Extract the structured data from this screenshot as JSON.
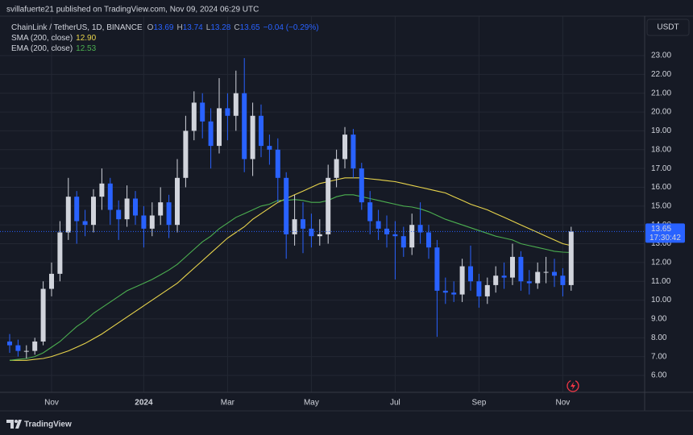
{
  "chart_data": {
    "type": "candlestick",
    "header": "svillafuerte21 published on TradingView.com, Nov 09, 2024 06:29 UTC",
    "symbol": "ChainLink / TetherUS, 1D, BINANCE",
    "ohlc": [
      {
        "label": "O",
        "value": "13.69"
      },
      {
        "label": "H",
        "value": "13.74"
      },
      {
        "label": "L",
        "value": "13.28"
      },
      {
        "label": "C",
        "value": "13.65"
      }
    ],
    "change": "−0.04 (−0.29%)",
    "currency": "USDT",
    "last_price": {
      "label": "13.65",
      "countdown": "17:30:42"
    },
    "footer": "TradingView",
    "up_color": "#d1d4dc",
    "down_color": "#2962ff",
    "grid": true,
    "categories": [
      null,
      null,
      null,
      null,
      null,
      "Nov",
      null,
      null,
      null,
      null,
      null,
      null,
      null,
      null,
      null,
      null,
      "2024",
      null,
      null,
      null,
      null,
      null,
      null,
      null,
      null,
      null,
      "Mar",
      null,
      null,
      null,
      null,
      null,
      null,
      null,
      null,
      null,
      "May",
      null,
      null,
      null,
      null,
      null,
      null,
      null,
      null,
      null,
      "Jul",
      null,
      null,
      null,
      null,
      null,
      null,
      null,
      null,
      null,
      "Sep",
      null,
      null,
      null,
      null,
      null,
      null,
      null,
      null,
      null,
      "Nov",
      null
    ],
    "open": [
      7.8,
      7.6,
      7.3,
      7.3,
      7.8,
      10.6,
      11.4,
      13.6,
      15.5,
      14.2,
      14.0,
      15.5,
      16.2,
      14.8,
      14.3,
      15.4,
      14.5,
      13.8,
      14.5,
      15.2,
      14.0,
      16.5,
      19.0,
      20.5,
      19.5,
      18.2,
      20.2,
      19.8,
      21.0,
      17.5,
      19.8,
      18.2,
      18.0,
      16.5,
      13.5,
      14.3,
      13.8,
      13.4,
      13.5,
      16.5,
      17.5,
      18.8,
      17.0,
      15.2,
      14.2,
      13.8,
      13.5,
      13.4,
      12.8,
      14.0,
      13.6,
      12.8,
      10.5,
      10.4,
      10.3,
      11.8,
      11.0,
      10.2,
      10.8,
      11.3,
      11.2,
      12.3,
      11.0,
      10.9,
      11.5,
      11.5,
      11.3,
      10.8
    ],
    "high": [
      8.2,
      7.9,
      7.6,
      8.0,
      11.0,
      12.0,
      14.2,
      16.5,
      15.8,
      14.8,
      15.9,
      17.0,
      16.5,
      15.3,
      16.1,
      15.8,
      15.0,
      15.2,
      16.0,
      15.6,
      17.5,
      19.8,
      21.1,
      21.0,
      20.2,
      21.8,
      21.0,
      22.2,
      22.87,
      20.5,
      20.4,
      18.8,
      18.6,
      16.8,
      15.6,
      15.2,
      14.6,
      14.3,
      17.2,
      18.0,
      19.2,
      19.1,
      17.3,
      15.8,
      14.8,
      14.5,
      14.2,
      13.9,
      14.6,
      15.2,
      14.0,
      13.2,
      11.2,
      11.0,
      12.2,
      12.9,
      11.4,
      11.2,
      11.8,
      12.0,
      13.0,
      12.6,
      11.6,
      12.0,
      12.3,
      12.2,
      11.7,
      13.9
    ],
    "low": [
      7.2,
      7.0,
      6.9,
      7.1,
      7.6,
      10.2,
      11.0,
      13.2,
      13.0,
      13.4,
      13.6,
      14.8,
      14.0,
      13.2,
      13.9,
      14.0,
      12.8,
      13.4,
      14.0,
      13.3,
      13.6,
      16.0,
      18.5,
      18.6,
      17.0,
      17.8,
      18.5,
      19.0,
      16.8,
      16.6,
      17.6,
      17.2,
      15.2,
      12.2,
      12.9,
      12.5,
      12.8,
      12.9,
      13.0,
      16.0,
      17.0,
      16.5,
      14.8,
      13.5,
      13.2,
      12.8,
      11.1,
      12.3,
      12.4,
      13.0,
      12.2,
      8.05,
      9.8,
      9.9,
      9.9,
      10.5,
      9.6,
      9.8,
      10.4,
      10.6,
      10.8,
      10.5,
      10.3,
      10.6,
      10.9,
      10.7,
      10.2,
      10.5
    ],
    "close": [
      7.6,
      7.3,
      7.3,
      7.8,
      10.6,
      11.4,
      13.6,
      15.5,
      14.2,
      14.0,
      15.5,
      16.2,
      14.8,
      14.3,
      15.4,
      14.5,
      13.8,
      14.5,
      15.2,
      14.0,
      16.5,
      19.0,
      20.5,
      19.5,
      18.2,
      20.2,
      19.8,
      21.0,
      17.5,
      19.8,
      18.2,
      18.0,
      16.5,
      13.5,
      14.3,
      13.8,
      13.4,
      13.5,
      16.5,
      17.5,
      18.8,
      17.0,
      15.2,
      14.2,
      13.8,
      13.5,
      13.4,
      12.8,
      14.0,
      13.6,
      12.8,
      10.5,
      10.4,
      10.3,
      11.8,
      11.0,
      10.2,
      10.8,
      11.3,
      11.2,
      12.3,
      11.0,
      10.9,
      11.5,
      11.5,
      11.3,
      10.8,
      13.65
    ],
    "series": [
      {
        "name": "SMA (200, close)",
        "legend_value": "12.90",
        "color": "#e9d54c",
        "values": [
          6.8,
          6.8,
          6.8,
          6.85,
          6.9,
          7.0,
          7.15,
          7.3,
          7.5,
          7.7,
          7.95,
          8.2,
          8.5,
          8.8,
          9.1,
          9.4,
          9.7,
          10.0,
          10.3,
          10.6,
          10.9,
          11.3,
          11.7,
          12.1,
          12.5,
          12.9,
          13.3,
          13.6,
          13.9,
          14.3,
          14.6,
          14.9,
          15.2,
          15.4,
          15.6,
          15.8,
          16.0,
          16.2,
          16.3,
          16.4,
          16.5,
          16.5,
          16.5,
          16.45,
          16.4,
          16.35,
          16.3,
          16.2,
          16.1,
          16.0,
          15.9,
          15.8,
          15.7,
          15.5,
          15.3,
          15.1,
          14.95,
          14.8,
          14.6,
          14.4,
          14.2,
          14.0,
          13.8,
          13.6,
          13.4,
          13.2,
          13.0,
          12.9
        ]
      },
      {
        "name": "EMA (200, close)",
        "legend_value": "12.53",
        "color": "#4caf50",
        "values": [
          6.8,
          6.85,
          6.9,
          7.0,
          7.2,
          7.5,
          7.8,
          8.2,
          8.6,
          8.9,
          9.3,
          9.6,
          9.9,
          10.2,
          10.5,
          10.7,
          10.9,
          11.1,
          11.35,
          11.6,
          11.9,
          12.3,
          12.7,
          13.1,
          13.4,
          13.8,
          14.1,
          14.4,
          14.6,
          14.8,
          15.0,
          15.1,
          15.3,
          15.3,
          15.35,
          15.3,
          15.2,
          15.2,
          15.3,
          15.5,
          15.6,
          15.6,
          15.5,
          15.4,
          15.3,
          15.2,
          15.1,
          15.0,
          14.95,
          14.85,
          14.7,
          14.5,
          14.3,
          14.15,
          14.0,
          13.85,
          13.7,
          13.55,
          13.4,
          13.3,
          13.2,
          13.0,
          12.9,
          12.8,
          12.7,
          12.6,
          12.55,
          12.53
        ]
      }
    ],
    "ylim": [
      5.1,
      25.1
    ],
    "yticks": [
      {
        "value": 6,
        "label": "6.00"
      },
      {
        "value": 7,
        "label": "7.00"
      },
      {
        "value": 8,
        "label": "8.00"
      },
      {
        "value": 9,
        "label": "9.00"
      },
      {
        "value": 10,
        "label": "10.00"
      },
      {
        "value": 11,
        "label": "11.00"
      },
      {
        "value": 12,
        "label": "12.00"
      },
      {
        "value": 13,
        "label": "13.00"
      },
      {
        "value": 14,
        "label": "14.00"
      },
      {
        "value": 15,
        "label": "15.00"
      },
      {
        "value": 16,
        "label": "16.00"
      },
      {
        "value": 17,
        "label": "17.00"
      },
      {
        "value": 18,
        "label": "18.00"
      },
      {
        "value": 19,
        "label": "19.00"
      },
      {
        "value": 20,
        "label": "20.00"
      },
      {
        "value": 21,
        "label": "21.00"
      },
      {
        "value": 22,
        "label": "22.00"
      },
      {
        "value": 23,
        "label": "23.00"
      }
    ]
  }
}
